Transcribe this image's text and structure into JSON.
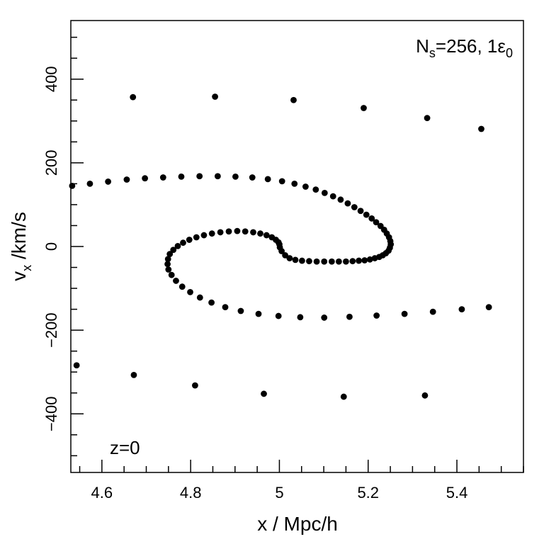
{
  "chart_data": {
    "type": "scatter",
    "title": "",
    "xlabel": "x / Mpc/h",
    "ylabel": "v",
    "ylabel_sub": "x",
    "ylabel_unit": " /km/s",
    "xlim": [
      4.53,
      5.55
    ],
    "ylim": [
      -540,
      540
    ],
    "x_ticks": [
      4.6,
      4.8,
      5.0,
      5.2,
      5.4
    ],
    "x_tick_labels": [
      "4.6",
      "4.8",
      "5",
      "5.2",
      "5.4"
    ],
    "y_ticks": [
      -400,
      -200,
      0,
      200,
      400
    ],
    "y_tick_labels": [
      "−400",
      "−200",
      "0",
      "200",
      "400"
    ],
    "grid": false,
    "annotations": {
      "label_N": "N",
      "label_N_sub": "s",
      "label_rest": "=256, 1ε",
      "label_rest_sub": "0",
      "redshift": "z=0"
    },
    "marker_color": "#000000",
    "series": [
      {
        "values_x": [
          4.67,
          4.855,
          5.032,
          5.19,
          5.333,
          5.455,
          4.543,
          4.672,
          4.81,
          4.965,
          5.145,
          5.328
        ],
        "values_y": [
          357,
          358,
          350,
          331,
          307,
          281,
          -284,
          -307,
          -332,
          -352,
          -359,
          -356
        ]
      },
      {
        "values_x": [
          4.533,
          4.573,
          4.614,
          4.656,
          4.697,
          4.738,
          4.779,
          4.82,
          4.861,
          4.901,
          4.939,
          4.974,
          5.006,
          5.034,
          5.059,
          5.082,
          5.102,
          5.121,
          5.138,
          5.154,
          5.169,
          5.183,
          5.196,
          5.208,
          5.218,
          5.228,
          5.236,
          5.242,
          5.247,
          5.25,
          5.251,
          5.249,
          5.246,
          5.24,
          5.233,
          5.225,
          5.215,
          5.204,
          5.192,
          5.179,
          5.165,
          5.15,
          5.134,
          5.118,
          5.101,
          5.084,
          5.067,
          5.051,
          5.036,
          5.023,
          5.013,
          5.005,
          5.001,
          5.0,
          4.998,
          4.992,
          4.983,
          4.971,
          4.957,
          4.941,
          4.923,
          4.905,
          4.886,
          4.867,
          4.848,
          4.83,
          4.813,
          4.797,
          4.783,
          4.771,
          4.761,
          4.753,
          4.749,
          4.748,
          4.75,
          4.757,
          4.767,
          4.781,
          4.799,
          4.821,
          4.847,
          4.878,
          4.913,
          4.953,
          4.998,
          5.047,
          5.101,
          5.158,
          5.219,
          5.282,
          5.346,
          5.411,
          5.472
        ],
        "values_y": [
          145,
          150,
          155,
          160,
          163,
          165,
          167,
          168,
          168,
          167,
          165,
          161,
          156,
          150,
          143,
          136,
          128,
          120,
          112,
          103,
          94,
          85,
          76,
          67,
          58,
          49,
          40,
          31,
          22,
          13,
          5,
          -3,
          -10,
          -16,
          -21,
          -25,
          -28,
          -31,
          -33,
          -34,
          -35,
          -36,
          -36,
          -36,
          -36,
          -36,
          -35,
          -34,
          -32,
          -28,
          -21,
          -11,
          -2,
          5,
          10,
          16,
          22,
          27,
          31,
          34,
          36,
          37,
          36,
          34,
          31,
          27,
          22,
          16,
          9,
          1,
          -8,
          -18,
          -30,
          -42,
          -55,
          -68,
          -82,
          -96,
          -109,
          -122,
          -134,
          -145,
          -154,
          -161,
          -166,
          -169,
          -170,
          -168,
          -165,
          -161,
          -156,
          -150,
          -145
        ]
      }
    ]
  }
}
